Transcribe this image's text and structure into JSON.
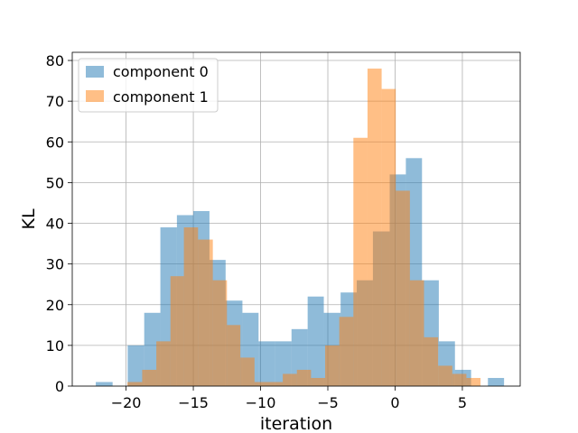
{
  "chart_data": {
    "type": "bar",
    "title": "",
    "xlabel": "iteration",
    "ylabel": "KL",
    "xlim": [
      -24.0,
      9.3
    ],
    "ylim": [
      0,
      82
    ],
    "xticks": [
      -20,
      -15,
      -10,
      -5,
      0,
      5
    ],
    "xtick_labels": [
      "−20",
      "−15",
      "−10",
      "−5",
      "0",
      "5"
    ],
    "yticks": [
      0,
      10,
      20,
      30,
      40,
      50,
      60,
      70,
      80
    ],
    "ytick_labels": [
      "0",
      "10",
      "20",
      "30",
      "40",
      "50",
      "60",
      "70",
      "80"
    ],
    "grid": true,
    "legend_position": "upper-left",
    "series": [
      {
        "name": "component 0",
        "color": "#1f77b4",
        "alpha": 0.5,
        "bin_edges": [
          -22.25,
          -21.0,
          -19.88,
          -18.65,
          -17.45,
          -16.22,
          -15.0,
          -13.8,
          -12.6,
          -11.35,
          -10.15,
          -8.95,
          -7.7,
          -6.5,
          -5.3,
          -4.05,
          -2.85,
          -1.65,
          -0.4,
          0.8,
          2.0,
          3.25,
          4.45,
          5.65,
          6.9,
          8.1
        ],
        "counts": [
          1,
          0,
          10,
          18,
          39,
          42,
          43,
          31,
          21,
          18,
          11,
          11,
          14,
          22,
          18,
          23,
          26,
          38,
          52,
          56,
          26,
          11,
          4,
          0,
          2
        ]
      },
      {
        "name": "component 1",
        "color": "#ff7f0e",
        "alpha": 0.5,
        "bin_edges": [
          -19.9,
          -18.8,
          -17.75,
          -16.7,
          -15.7,
          -14.65,
          -13.55,
          -12.5,
          -11.5,
          -10.45,
          -9.4,
          -8.35,
          -7.3,
          -6.25,
          -5.2,
          -4.15,
          -3.1,
          -2.05,
          -1.0,
          0.05,
          1.1,
          2.15,
          3.2,
          4.25,
          5.3,
          6.35
        ],
        "counts": [
          1,
          4,
          11,
          27,
          39,
          36,
          26,
          15,
          7,
          1,
          1,
          3,
          4,
          2,
          10,
          17,
          61,
          78,
          73,
          48,
          26,
          12,
          5,
          3,
          2
        ]
      }
    ]
  }
}
